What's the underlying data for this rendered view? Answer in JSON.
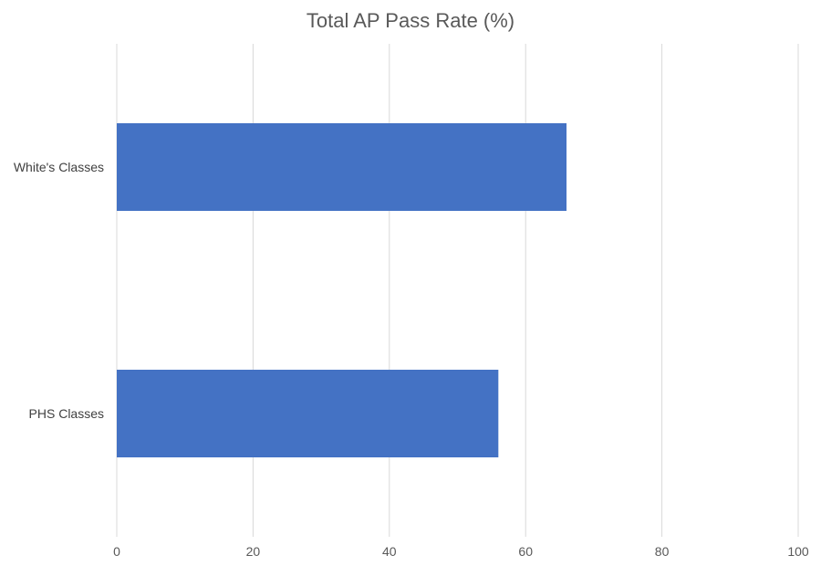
{
  "chart_data": {
    "type": "bar",
    "orientation": "horizontal",
    "title": "Total AP Pass Rate (%)",
    "xlabel": "",
    "ylabel": "",
    "categories": [
      "White's Classes",
      "PHS Classes"
    ],
    "values": [
      66,
      56
    ],
    "xlim": [
      0,
      100
    ],
    "x_ticks": [
      0,
      20,
      40,
      60,
      80,
      100
    ],
    "grid": true,
    "legend": "none",
    "bar_color": "#4472C4"
  }
}
